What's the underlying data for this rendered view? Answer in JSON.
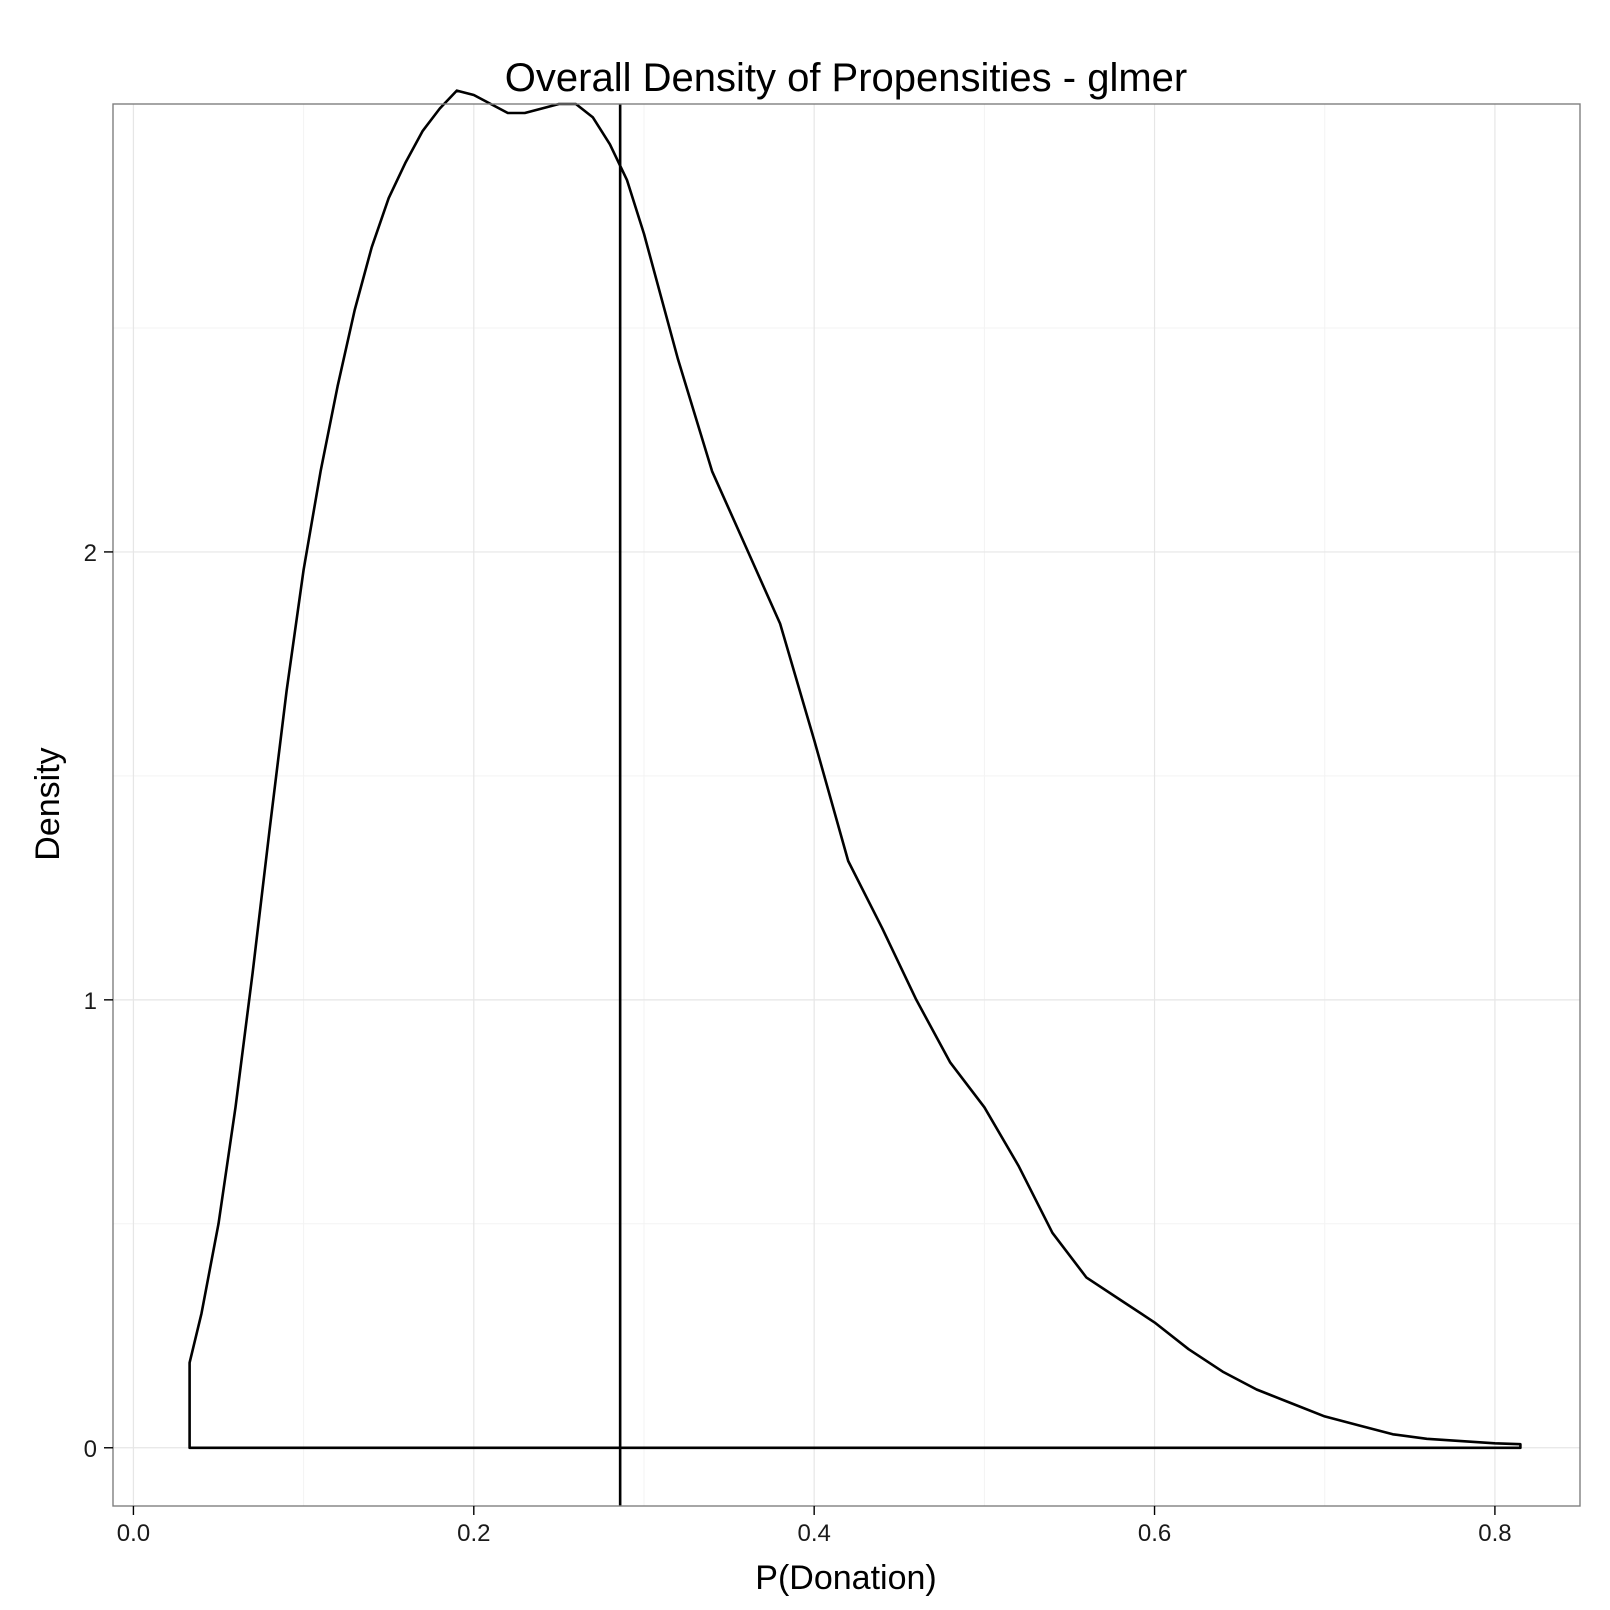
{
  "chart_data": {
    "type": "line",
    "title": "Overall Density of Propensities - glmer",
    "xlabel": "P(Donation)",
    "ylabel": "Density",
    "xlim": [
      -0.012,
      0.85
    ],
    "ylim": [
      -0.13,
      3.0
    ],
    "x_ticks": [
      "0.0",
      "0.2",
      "0.4",
      "0.6",
      "0.8"
    ],
    "y_ticks": [
      "0",
      "1",
      "2"
    ],
    "grid": true,
    "legend": "none",
    "reference_line_x": 0.286,
    "series": [
      {
        "x": [
          0.033,
          0.04,
          0.05,
          0.06,
          0.07,
          0.08,
          0.09,
          0.1,
          0.11,
          0.12,
          0.13,
          0.14,
          0.15,
          0.16,
          0.17,
          0.18,
          0.19,
          0.2,
          0.21,
          0.22,
          0.23,
          0.24,
          0.25,
          0.26,
          0.27,
          0.28,
          0.29,
          0.3,
          0.32,
          0.34,
          0.36,
          0.38,
          0.4,
          0.42,
          0.44,
          0.46,
          0.48,
          0.5,
          0.52,
          0.54,
          0.56,
          0.58,
          0.6,
          0.62,
          0.64,
          0.66,
          0.68,
          0.7,
          0.72,
          0.74,
          0.76,
          0.78,
          0.8,
          0.815
        ],
        "y": [
          0.19,
          0.3,
          0.5,
          0.76,
          1.06,
          1.38,
          1.69,
          1.96,
          2.18,
          2.37,
          2.54,
          2.68,
          2.79,
          2.87,
          2.94,
          2.99,
          3.03,
          3.02,
          3.0,
          2.98,
          2.98,
          2.99,
          3.0,
          3.0,
          2.97,
          2.91,
          2.83,
          2.71,
          2.43,
          2.18,
          2.01,
          1.84,
          1.58,
          1.31,
          1.16,
          1.0,
          0.86,
          0.76,
          0.63,
          0.48,
          0.38,
          0.33,
          0.28,
          0.22,
          0.17,
          0.13,
          0.1,
          0.07,
          0.05,
          0.03,
          0.02,
          0.015,
          0.01,
          0.008
        ]
      }
    ]
  }
}
